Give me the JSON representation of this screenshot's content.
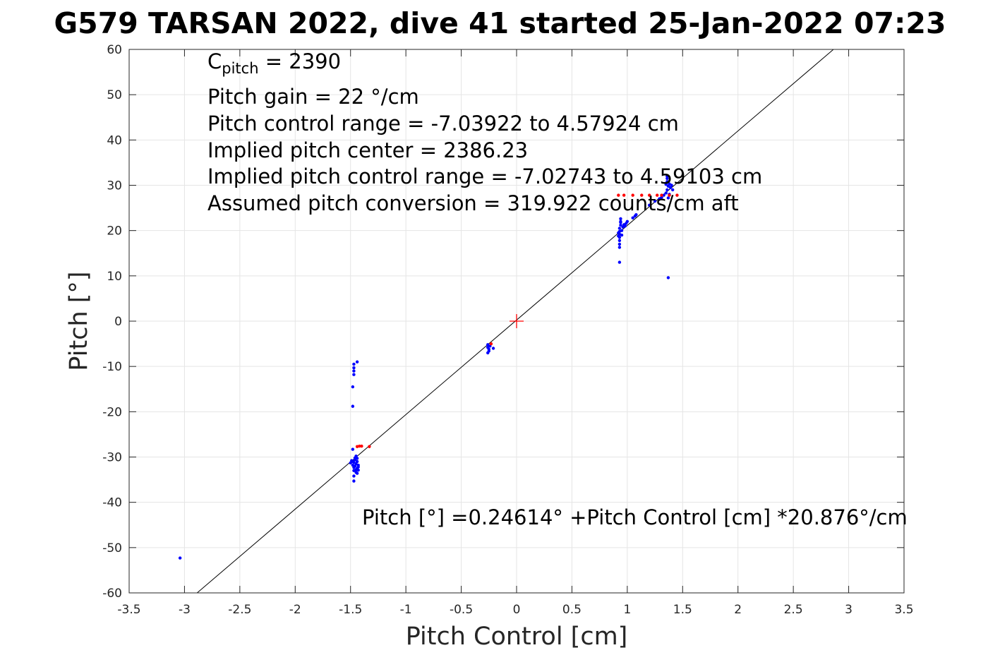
{
  "title": "G579 TARSAN 2022, dive 41 started 25-Jan-2022 07:23",
  "annotations": {
    "cpitch_prefix": "C",
    "cpitch_sub": "pitch",
    "cpitch_suffix": " = 2390",
    "pitch_gain": "Pitch gain = 22 °/cm",
    "control_range": "Pitch control range = -7.03922 to 4.57924 cm",
    "implied_center": "Implied pitch center = 2386.23",
    "implied_range": "Implied pitch control range = -7.02743 to 4.59103 cm",
    "conversion": "Assumed pitch conversion = 319.922 counts/cm aft",
    "fit_equation": "Pitch [°] =0.24614° +Pitch Control [cm] *20.876°/cm"
  },
  "chart_data": {
    "type": "scatter",
    "title": "G579 TARSAN 2022, dive 41 started 25-Jan-2022 07:23",
    "xlabel": "Pitch Control [cm]",
    "ylabel": "Pitch [°]",
    "xlim": [
      -3.5,
      3.5
    ],
    "ylim": [
      -60,
      60
    ],
    "xticks": [
      -3.5,
      -3,
      -2.5,
      -2,
      -1.5,
      -1,
      -0.5,
      0,
      0.5,
      1,
      1.5,
      2,
      2.5,
      3,
      3.5
    ],
    "xtick_labels": [
      "-3.5",
      "-3",
      "-2.5",
      "-2",
      "-1.5",
      "-1",
      "-0.5",
      "0",
      "0.5",
      "1",
      "1.5",
      "2",
      "2.5",
      "3",
      "3.5"
    ],
    "yticks": [
      -60,
      -50,
      -40,
      -30,
      -20,
      -10,
      0,
      10,
      20,
      30,
      40,
      50,
      60
    ],
    "ytick_labels": [
      "-60",
      "-50",
      "-40",
      "-30",
      "-20",
      "-10",
      "0",
      "10",
      "20",
      "30",
      "40",
      "50",
      "60"
    ],
    "grid": true,
    "colors": {
      "observed": "#0000ff",
      "flagged": "#ff0000",
      "fit": "#000000",
      "center": "#ff0000",
      "grid": "#e5e5e5",
      "axes": "#262626"
    },
    "fit_line": {
      "intercept": 0.24614,
      "slope": 20.876
    },
    "center_marker": {
      "x": 0,
      "y": 0
    },
    "series": [
      {
        "color": "#0000ff",
        "points": [
          [
            -3.04,
            -52.3
          ],
          [
            -1.47,
            -9.5
          ],
          [
            -1.47,
            -10.3
          ],
          [
            -1.47,
            -11.0
          ],
          [
            -1.47,
            -11.8
          ],
          [
            -1.48,
            -14.5
          ],
          [
            -1.48,
            -18.8
          ],
          [
            -1.44,
            -9.0
          ],
          [
            -1.48,
            -28.3
          ],
          [
            -1.49,
            -30.8
          ],
          [
            -1.48,
            -31.0
          ],
          [
            -1.47,
            -31.2
          ],
          [
            -1.46,
            -30.6
          ],
          [
            -1.45,
            -31.5
          ],
          [
            -1.44,
            -31.0
          ],
          [
            -1.43,
            -31.8
          ],
          [
            -1.48,
            -31.8
          ],
          [
            -1.47,
            -32.3
          ],
          [
            -1.46,
            -32.0
          ],
          [
            -1.45,
            -32.8
          ],
          [
            -1.44,
            -32.5
          ],
          [
            -1.43,
            -32.2
          ],
          [
            -1.47,
            -33.0
          ],
          [
            -1.45,
            -33.4
          ],
          [
            -1.44,
            -33.6
          ],
          [
            -1.47,
            -34.2
          ],
          [
            -1.47,
            -35.3
          ],
          [
            -1.46,
            -30.2
          ],
          [
            -1.45,
            -29.8
          ],
          [
            -1.5,
            -31.3
          ],
          [
            -1.44,
            -30.3
          ],
          [
            -1.43,
            -32.9
          ],
          [
            -0.26,
            -5.2
          ],
          [
            -0.26,
            -5.8
          ],
          [
            -0.25,
            -6.2
          ],
          [
            -0.25,
            -6.6
          ],
          [
            -0.26,
            -7.0
          ],
          [
            -0.21,
            -6.0
          ],
          [
            -0.24,
            -5.5
          ],
          [
            0.93,
            13.0
          ],
          [
            0.93,
            16.3
          ],
          [
            0.93,
            17.0
          ],
          [
            0.93,
            17.8
          ],
          [
            0.93,
            18.5
          ],
          [
            0.93,
            19.2
          ],
          [
            0.93,
            19.8
          ],
          [
            0.93,
            20.5
          ],
          [
            0.94,
            21.2
          ],
          [
            0.94,
            22.0
          ],
          [
            0.94,
            22.6
          ],
          [
            0.95,
            19.0
          ],
          [
            0.95,
            20.0
          ],
          [
            0.96,
            20.8
          ],
          [
            0.97,
            21.3
          ],
          [
            0.98,
            21.0
          ],
          [
            0.99,
            21.6
          ],
          [
            1.0,
            22.0
          ],
          [
            1.05,
            22.8
          ],
          [
            1.07,
            23.2
          ],
          [
            1.08,
            23.5
          ],
          [
            0.92,
            19.5
          ],
          [
            0.92,
            18.8
          ],
          [
            0.94,
            21.8
          ],
          [
            1.2,
            25.6
          ],
          [
            1.25,
            26.5
          ],
          [
            1.29,
            27.0
          ],
          [
            1.31,
            27.3
          ],
          [
            1.33,
            27.8
          ],
          [
            1.35,
            28.3
          ],
          [
            1.36,
            29.0
          ],
          [
            1.37,
            29.8
          ],
          [
            1.38,
            30.3
          ],
          [
            1.39,
            29.5
          ],
          [
            1.4,
            30.0
          ],
          [
            1.41,
            29.0
          ],
          [
            1.36,
            30.8
          ],
          [
            1.36,
            31.5
          ],
          [
            1.36,
            32.0
          ],
          [
            1.37,
            27.2
          ],
          [
            1.38,
            28.0
          ],
          [
            1.35,
            30.2
          ],
          [
            1.37,
            9.6
          ]
        ]
      },
      {
        "color": "#ff0000",
        "points": [
          [
            -1.44,
            -27.7
          ],
          [
            -1.42,
            -27.6
          ],
          [
            -1.4,
            -27.6
          ],
          [
            -1.33,
            -27.7
          ],
          [
            -0.23,
            -5.0
          ],
          [
            0.92,
            27.8
          ],
          [
            0.97,
            27.8
          ],
          [
            1.05,
            27.8
          ],
          [
            1.13,
            27.8
          ],
          [
            1.2,
            27.8
          ],
          [
            1.27,
            27.8
          ],
          [
            1.31,
            27.8
          ],
          [
            1.38,
            27.8
          ],
          [
            1.45,
            27.8
          ]
        ]
      }
    ]
  }
}
